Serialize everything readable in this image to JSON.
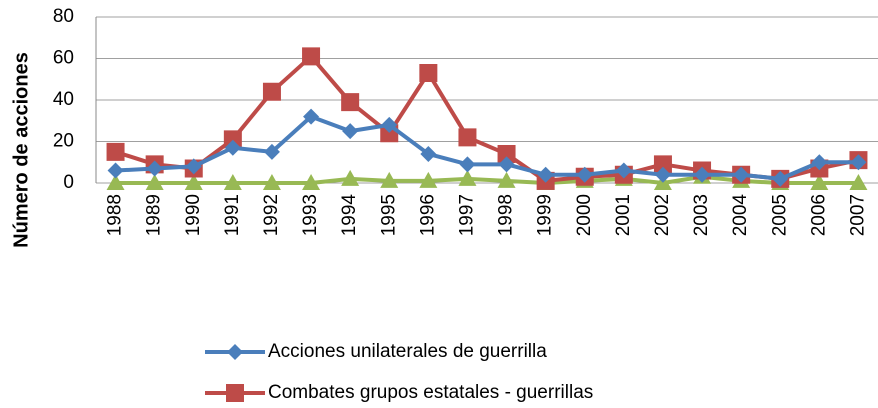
{
  "chart_data": {
    "type": "line",
    "y_label": "Número de acciones",
    "categories": [
      "1988",
      "1989",
      "1990",
      "1991",
      "1992",
      "1993",
      "1994",
      "1995",
      "1996",
      "1997",
      "1998",
      "1999",
      "2000",
      "2001",
      "2002",
      "2003",
      "2004",
      "2005",
      "2006",
      "2007"
    ],
    "series": [
      {
        "name": "Acciones unilaterales de guerrilla",
        "color": "#4a7ebb",
        "marker": "diamond",
        "values": [
          6,
          7,
          8,
          17,
          15,
          32,
          25,
          28,
          14,
          9,
          9,
          4,
          4,
          6,
          4,
          4,
          4,
          2,
          10,
          10
        ]
      },
      {
        "name": "Combates grupos estatales - guerrillas",
        "color": "#be4b48",
        "marker": "square",
        "values": [
          15,
          9,
          7,
          21,
          44,
          61,
          39,
          24,
          53,
          22,
          14,
          1,
          3,
          4,
          9,
          6,
          4,
          2,
          7,
          11
        ]
      },
      {
        "color": "#98b954",
        "marker": "triangle",
        "values": [
          0,
          0,
          0,
          0,
          0,
          0,
          2,
          1,
          1,
          2,
          1,
          0,
          1,
          2,
          0,
          3,
          1,
          0,
          0,
          0
        ]
      }
    ],
    "ylim": [
      0,
      80
    ],
    "yticks": [
      0,
      20,
      40,
      60,
      80
    ],
    "grid": true
  }
}
